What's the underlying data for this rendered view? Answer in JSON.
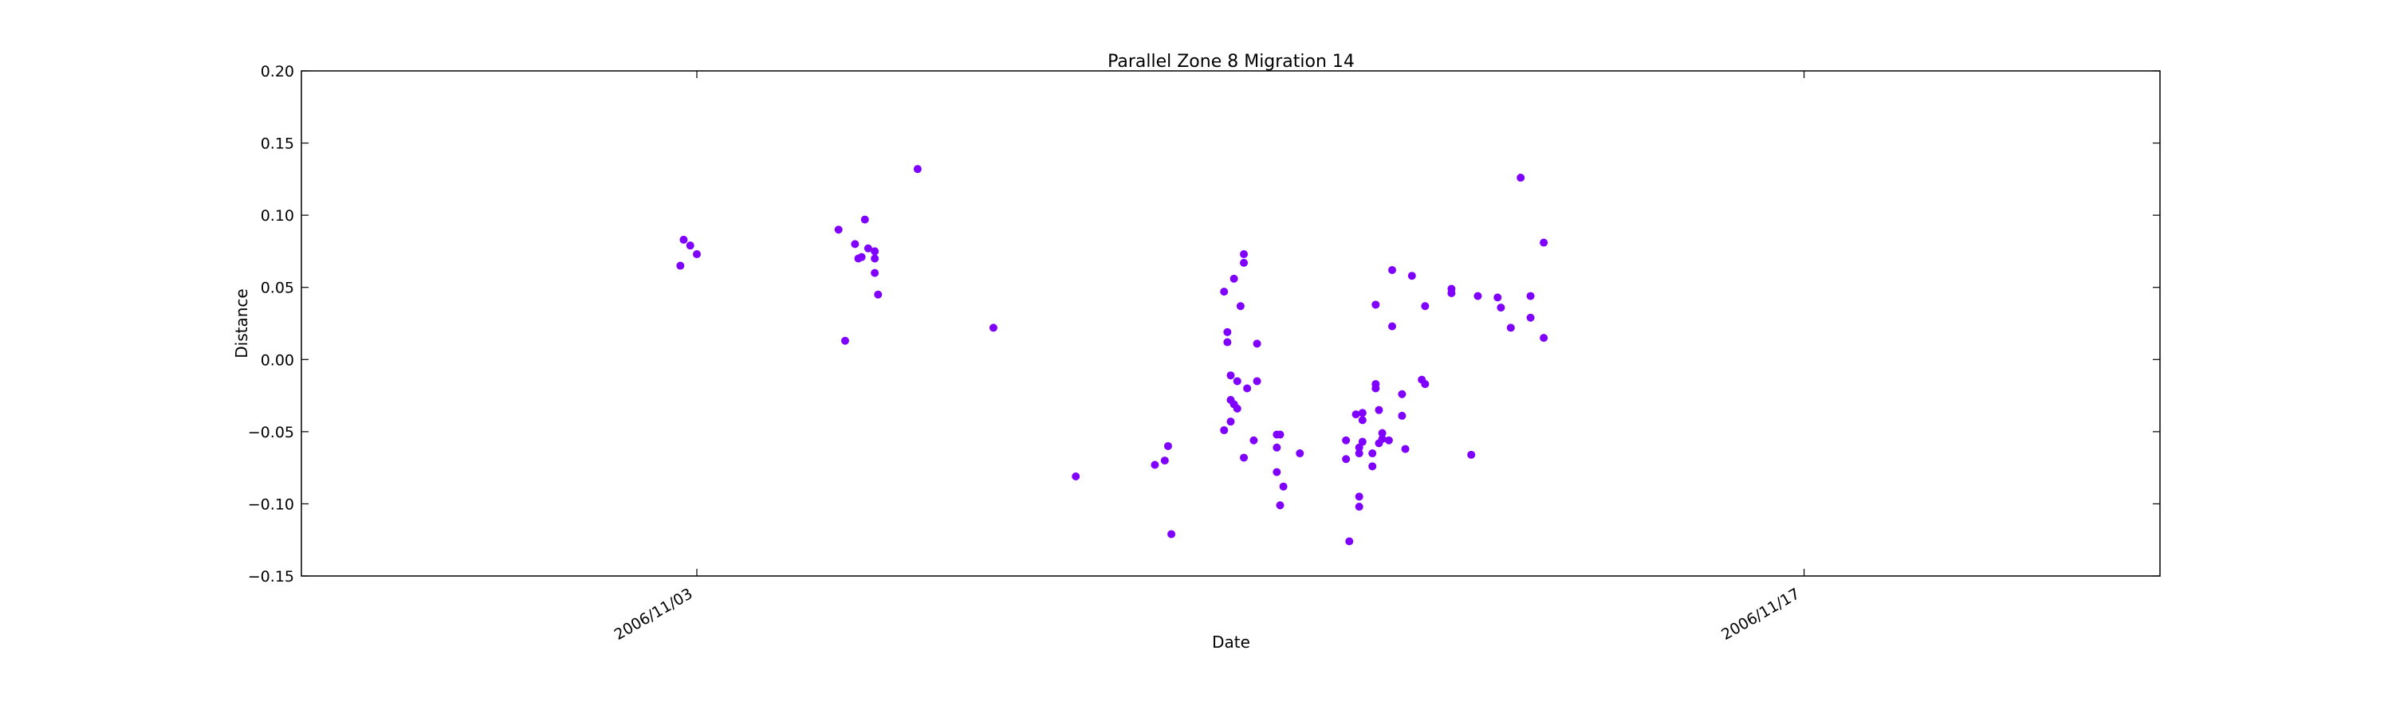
{
  "chart_data": {
    "type": "scatter",
    "title": "Parallel Zone 8 Migration 14",
    "xlabel": "Date",
    "ylabel": "Distance",
    "x_axis_kind": "date",
    "xlim": [
      "2006-10-29T00:00",
      "2006-11-21T12:00"
    ],
    "ylim": [
      -0.15,
      0.2
    ],
    "x_ticks": [
      {
        "value": "2006-11-03T00:00",
        "label": "2006/11/03"
      },
      {
        "value": "2006-11-17T00:00",
        "label": "2006/11/17"
      }
    ],
    "y_ticks": [
      -0.15,
      -0.1,
      -0.05,
      0.0,
      0.05,
      0.1,
      0.15,
      0.2
    ],
    "y_tick_labels": [
      "−0.15",
      "−0.10",
      "−0.05",
      "0.00",
      "0.05",
      "0.10",
      "0.15",
      "0.20"
    ],
    "grid": false,
    "marker_color": "#8000ff",
    "points": [
      {
        "x": "2006-11-02T19:00",
        "y": 0.065
      },
      {
        "x": "2006-11-02T20:00",
        "y": 0.083
      },
      {
        "x": "2006-11-02T22:00",
        "y": 0.079
      },
      {
        "x": "2006-11-03T00:00",
        "y": 0.073
      },
      {
        "x": "2006-11-04T19:00",
        "y": 0.09
      },
      {
        "x": "2006-11-04T21:00",
        "y": 0.013
      },
      {
        "x": "2006-11-05T00:00",
        "y": 0.08
      },
      {
        "x": "2006-11-05T01:00",
        "y": 0.07
      },
      {
        "x": "2006-11-05T02:00",
        "y": 0.071
      },
      {
        "x": "2006-11-05T03:00",
        "y": 0.097
      },
      {
        "x": "2006-11-05T04:00",
        "y": 0.077
      },
      {
        "x": "2006-11-05T06:00",
        "y": 0.075
      },
      {
        "x": "2006-11-05T06:00",
        "y": 0.07
      },
      {
        "x": "2006-11-05T06:00",
        "y": 0.06
      },
      {
        "x": "2006-11-05T07:00",
        "y": 0.045
      },
      {
        "x": "2006-11-05T19:00",
        "y": 0.132
      },
      {
        "x": "2006-11-06T18:00",
        "y": 0.022
      },
      {
        "x": "2006-11-07T19:00",
        "y": -0.081
      },
      {
        "x": "2006-11-08T19:00",
        "y": -0.073
      },
      {
        "x": "2006-11-08T22:00",
        "y": -0.07
      },
      {
        "x": "2006-11-08T23:00",
        "y": -0.06
      },
      {
        "x": "2006-11-09T00:00",
        "y": -0.121
      },
      {
        "x": "2006-11-09T16:00",
        "y": 0.047
      },
      {
        "x": "2006-11-09T16:00",
        "y": -0.049
      },
      {
        "x": "2006-11-09T17:00",
        "y": 0.019
      },
      {
        "x": "2006-11-09T17:00",
        "y": 0.012
      },
      {
        "x": "2006-11-09T18:00",
        "y": -0.011
      },
      {
        "x": "2006-11-09T18:00",
        "y": -0.028
      },
      {
        "x": "2006-11-09T18:00",
        "y": -0.043
      },
      {
        "x": "2006-11-09T19:00",
        "y": 0.056
      },
      {
        "x": "2006-11-09T19:00",
        "y": -0.031
      },
      {
        "x": "2006-11-09T20:00",
        "y": -0.015
      },
      {
        "x": "2006-11-09T20:00",
        "y": -0.034
      },
      {
        "x": "2006-11-09T21:00",
        "y": 0.037
      },
      {
        "x": "2006-11-09T22:00",
        "y": 0.067
      },
      {
        "x": "2006-11-09T22:00",
        "y": 0.073
      },
      {
        "x": "2006-11-09T22:00",
        "y": -0.068
      },
      {
        "x": "2006-11-09T23:00",
        "y": -0.02
      },
      {
        "x": "2006-11-10T01:00",
        "y": -0.056
      },
      {
        "x": "2006-11-10T02:00",
        "y": 0.011
      },
      {
        "x": "2006-11-10T02:00",
        "y": -0.015
      },
      {
        "x": "2006-11-10T08:00",
        "y": -0.052
      },
      {
        "x": "2006-11-10T08:00",
        "y": -0.061
      },
      {
        "x": "2006-11-10T08:00",
        "y": -0.078
      },
      {
        "x": "2006-11-10T09:00",
        "y": -0.052
      },
      {
        "x": "2006-11-10T09:00",
        "y": -0.101
      },
      {
        "x": "2006-11-10T10:00",
        "y": -0.088
      },
      {
        "x": "2006-11-10T15:00",
        "y": -0.065
      },
      {
        "x": "2006-11-11T05:00",
        "y": -0.056
      },
      {
        "x": "2006-11-11T05:00",
        "y": -0.069
      },
      {
        "x": "2006-11-11T06:00",
        "y": -0.126
      },
      {
        "x": "2006-11-11T08:00",
        "y": -0.038
      },
      {
        "x": "2006-11-11T09:00",
        "y": -0.061
      },
      {
        "x": "2006-11-11T09:00",
        "y": -0.065
      },
      {
        "x": "2006-11-11T09:00",
        "y": -0.095
      },
      {
        "x": "2006-11-11T09:00",
        "y": -0.102
      },
      {
        "x": "2006-11-11T10:00",
        "y": -0.037
      },
      {
        "x": "2006-11-11T10:00",
        "y": -0.042
      },
      {
        "x": "2006-11-11T10:00",
        "y": -0.057
      },
      {
        "x": "2006-11-11T13:00",
        "y": -0.074
      },
      {
        "x": "2006-11-11T13:00",
        "y": -0.065
      },
      {
        "x": "2006-11-11T14:00",
        "y": 0.038
      },
      {
        "x": "2006-11-11T14:00",
        "y": -0.02
      },
      {
        "x": "2006-11-11T14:00",
        "y": -0.017
      },
      {
        "x": "2006-11-11T15:00",
        "y": -0.035
      },
      {
        "x": "2006-11-11T15:00",
        "y": -0.058
      },
      {
        "x": "2006-11-11T16:00",
        "y": -0.051
      },
      {
        "x": "2006-11-11T16:00",
        "y": -0.055
      },
      {
        "x": "2006-11-11T18:00",
        "y": -0.056
      },
      {
        "x": "2006-11-11T19:00",
        "y": 0.062
      },
      {
        "x": "2006-11-11T19:00",
        "y": 0.023
      },
      {
        "x": "2006-11-11T22:00",
        "y": -0.039
      },
      {
        "x": "2006-11-11T22:00",
        "y": -0.024
      },
      {
        "x": "2006-11-11T23:00",
        "y": -0.062
      },
      {
        "x": "2006-11-12T01:00",
        "y": 0.058
      },
      {
        "x": "2006-11-12T04:00",
        "y": -0.014
      },
      {
        "x": "2006-11-12T05:00",
        "y": 0.037
      },
      {
        "x": "2006-11-12T05:00",
        "y": -0.017
      },
      {
        "x": "2006-11-12T13:00",
        "y": 0.049
      },
      {
        "x": "2006-11-12T13:00",
        "y": 0.046
      },
      {
        "x": "2006-11-12T19:00",
        "y": -0.066
      },
      {
        "x": "2006-11-12T21:00",
        "y": 0.044
      },
      {
        "x": "2006-11-13T03:00",
        "y": 0.043
      },
      {
        "x": "2006-11-13T04:00",
        "y": 0.036
      },
      {
        "x": "2006-11-13T07:00",
        "y": 0.022
      },
      {
        "x": "2006-11-13T10:00",
        "y": 0.126
      },
      {
        "x": "2006-11-13T13:00",
        "y": 0.044
      },
      {
        "x": "2006-11-13T13:00",
        "y": 0.029
      },
      {
        "x": "2006-11-13T17:00",
        "y": 0.015
      },
      {
        "x": "2006-11-13T17:00",
        "y": 0.081
      }
    ]
  }
}
